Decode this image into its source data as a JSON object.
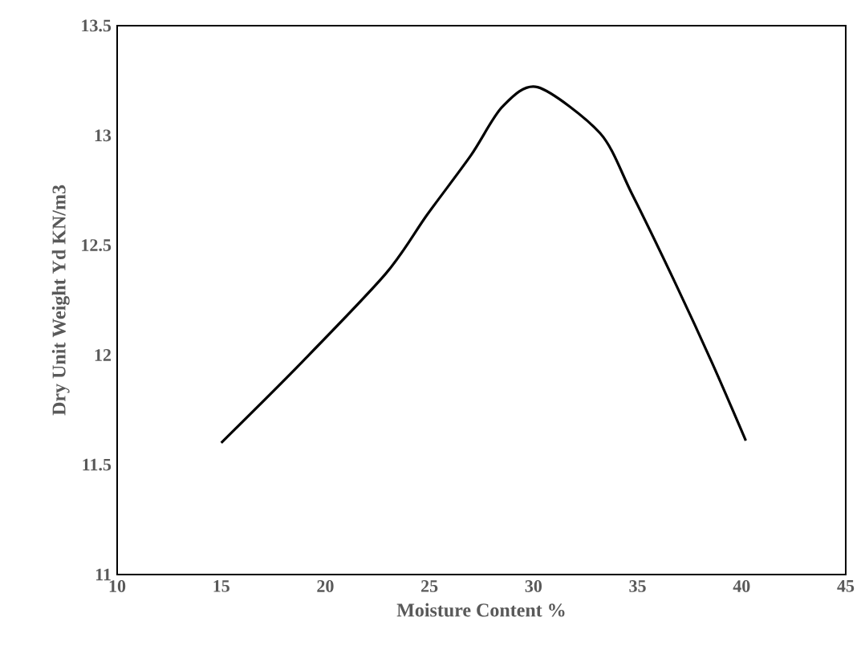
{
  "chart_data": {
    "type": "line",
    "xlabel": "Moisture Content %",
    "ylabel": "Dry Unit Weight Yd KN/m3",
    "x": [
      15,
      18.8,
      22.9,
      24.9,
      27,
      28.5,
      30.2,
      33.2,
      34.7,
      36.8,
      38.6,
      40.2
    ],
    "series": [
      {
        "color": "#000000",
        "values": [
          11.6,
          11.96,
          12.37,
          12.64,
          12.91,
          13.13,
          13.22,
          13.01,
          12.74,
          12.33,
          11.96,
          11.61
        ]
      }
    ],
    "xlim": [
      10,
      45
    ],
    "ylim": [
      11,
      13.5
    ],
    "xticks": [
      10,
      15,
      20,
      25,
      30,
      35,
      40,
      45
    ],
    "yticks": [
      11,
      11.5,
      12,
      12.5,
      13,
      13.5
    ],
    "marker": "none",
    "line_style": "solid"
  }
}
